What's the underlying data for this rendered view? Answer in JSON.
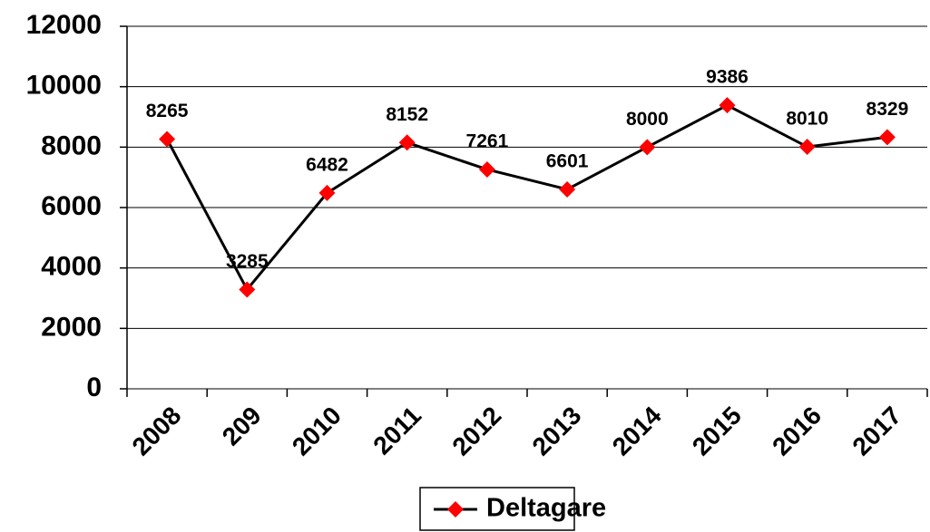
{
  "chart_data": {
    "type": "line",
    "categories": [
      "2008",
      "209",
      "2010",
      "2011",
      "2012",
      "2013",
      "2014",
      "2015",
      "2016",
      "2017"
    ],
    "series": [
      {
        "name": "Deltagare",
        "color": "#ff0000",
        "line_color": "#000000",
        "values": [
          8265,
          3285,
          6482,
          8152,
          7261,
          6601,
          8000,
          9386,
          8010,
          8329
        ]
      }
    ],
    "ylim": [
      0,
      12000
    ],
    "yticks": [
      0,
      2000,
      4000,
      6000,
      8000,
      10000,
      12000
    ],
    "grid": true,
    "data_labels": true,
    "legend": "bottom"
  }
}
